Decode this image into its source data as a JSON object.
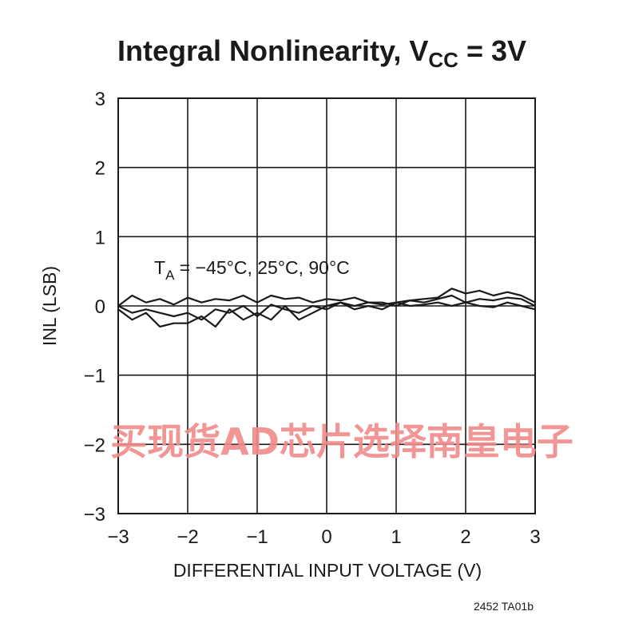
{
  "chart_data": {
    "type": "line",
    "title": {
      "text": "Integral Nonlinearity, V",
      "subscript": "CC",
      "suffix": " = 3V"
    },
    "xlabel": "DIFFERENTIAL INPUT VOLTAGE (V)",
    "ylabel": "INL (LSB)",
    "xlim": [
      -3,
      3
    ],
    "ylim": [
      -3,
      3
    ],
    "xticks": [
      -3,
      -2,
      -1,
      0,
      1,
      2,
      3
    ],
    "yticks": [
      -3,
      -2,
      -1,
      0,
      1,
      2,
      3
    ],
    "xtick_labels": [
      "−3",
      "−2",
      "−1",
      "0",
      "1",
      "2",
      "3"
    ],
    "ytick_labels": [
      "−3",
      "−2",
      "−1",
      "0",
      "1",
      "2",
      "3"
    ],
    "grid": true,
    "annotation": {
      "prefix": "T",
      "subscript": "A",
      "text": " = −45°C, 25°C, 90°C"
    },
    "series": [
      {
        "x": [
          -3.0,
          -2.8,
          -2.6,
          -2.4,
          -2.2,
          -2.0,
          -1.8,
          -1.6,
          -1.4,
          -1.2,
          -1.0,
          -0.8,
          -0.6,
          -0.4,
          -0.2,
          0.0,
          0.2,
          0.4,
          0.6,
          0.8,
          1.0,
          1.2,
          1.4,
          1.6,
          1.8,
          2.0,
          2.2,
          2.4,
          2.6,
          2.8,
          3.0
        ],
        "y": [
          0.0,
          0.15,
          0.05,
          0.1,
          0.02,
          0.12,
          0.05,
          0.1,
          0.08,
          0.15,
          0.05,
          0.15,
          0.1,
          0.12,
          0.05,
          0.1,
          0.08,
          0.12,
          0.05,
          0.02,
          0.05,
          0.08,
          0.1,
          0.12,
          0.25,
          0.18,
          0.22,
          0.15,
          0.2,
          0.15,
          0.05
        ]
      },
      {
        "x": [
          -3.0,
          -2.8,
          -2.6,
          -2.4,
          -2.2,
          -2.0,
          -1.8,
          -1.6,
          -1.4,
          -1.2,
          -1.0,
          -0.8,
          -0.6,
          -0.4,
          -0.2,
          0.0,
          0.2,
          0.4,
          0.6,
          0.8,
          1.0,
          1.2,
          1.4,
          1.6,
          1.8,
          2.0,
          2.2,
          2.4,
          2.6,
          2.8,
          3.0
        ],
        "y": [
          0.0,
          -0.1,
          -0.05,
          -0.1,
          -0.15,
          -0.1,
          -0.2,
          -0.05,
          -0.1,
          0.0,
          -0.15,
          0.02,
          -0.05,
          -0.1,
          0.0,
          -0.05,
          0.05,
          0.0,
          0.05,
          0.05,
          0.0,
          0.08,
          0.05,
          0.1,
          0.15,
          0.05,
          0.1,
          0.08,
          0.12,
          0.1,
          0.0
        ]
      },
      {
        "x": [
          -3.0,
          -2.8,
          -2.6,
          -2.4,
          -2.2,
          -2.0,
          -1.8,
          -1.6,
          -1.4,
          -1.2,
          -1.0,
          -0.8,
          -0.6,
          -0.4,
          -0.2,
          0.0,
          0.2,
          0.4,
          0.6,
          0.8,
          1.0,
          1.2,
          1.4,
          1.6,
          1.8,
          2.0,
          2.2,
          2.4,
          2.6,
          2.8,
          3.0
        ],
        "y": [
          -0.05,
          -0.2,
          -0.1,
          -0.3,
          -0.25,
          -0.25,
          -0.15,
          -0.3,
          -0.05,
          -0.2,
          -0.1,
          -0.2,
          0.0,
          -0.2,
          -0.1,
          0.0,
          0.05,
          -0.05,
          0.0,
          -0.05,
          0.05,
          0.0,
          0.02,
          0.05,
          0.0,
          0.05,
          0.0,
          -0.02,
          0.05,
          0.0,
          -0.05
        ]
      }
    ]
  },
  "figure_code": "2452 TA01b",
  "watermark": "买现货AD芯片选择南皇电子",
  "colors": {
    "line": "#1a1a1a",
    "grid": "#1a1a1a",
    "watermark": "#f08a8a"
  }
}
